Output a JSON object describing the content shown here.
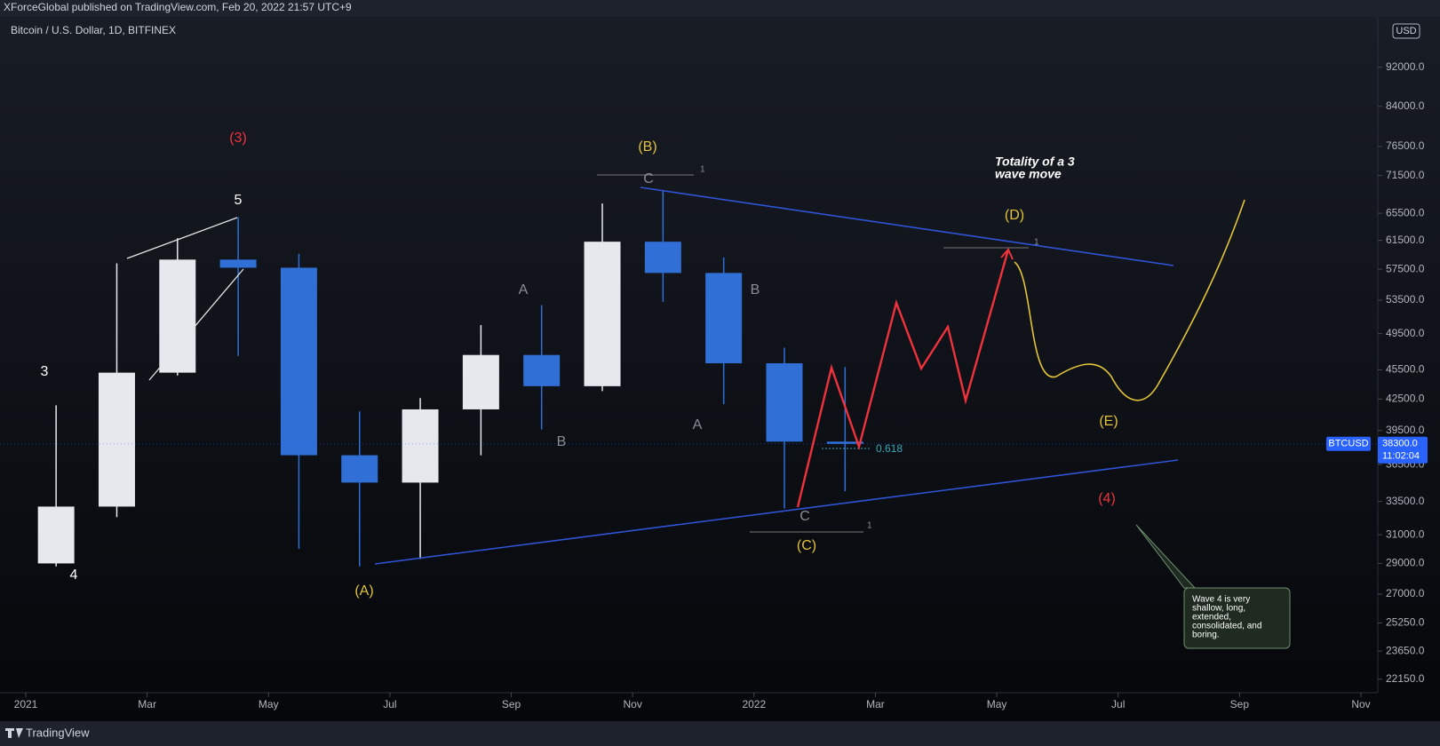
{
  "header": {
    "publisher": "XForceGlobal published on TradingView.com, Feb 20, 2022 21:57 UTC+9",
    "symbol": "Bitcoin / U.S. Dollar, 1D, BITFINEX",
    "currency": "USD",
    "brand": "TradingView"
  },
  "chart_data": {
    "type": "candlestick",
    "x": [
      "2021-01",
      "2021-02",
      "2021-03",
      "2021-04",
      "2021-05",
      "2021-06",
      "2021-07",
      "2021-08",
      "2021-09",
      "2021-10",
      "2021-11",
      "2021-12",
      "2022-01",
      "2022-02"
    ],
    "open": [
      29000,
      33100,
      45200,
      58800,
      57700,
      37300,
      35000,
      41500,
      47100,
      43800,
      61300,
      57000,
      46200,
      38500
    ],
    "high": [
      41900,
      58300,
      61800,
      64900,
      59600,
      41300,
      42600,
      50500,
      52900,
      67000,
      69000,
      59100,
      47900,
      45800
    ],
    "low": [
      28800,
      32300,
      44900,
      47000,
      30000,
      28800,
      29300,
      37300,
      39600,
      43300,
      53300,
      42000,
      32950,
      34300
    ],
    "close": [
      33100,
      45200,
      58800,
      57700,
      37300,
      35000,
      41500,
      47100,
      43800,
      61300,
      57000,
      46200,
      38500,
      38300
    ],
    "up_color": "#e6e8ee",
    "down_color": "#2f6fd6",
    "log_scale": true,
    "ylim": [
      21600,
      103000
    ],
    "yticks": [
      {
        "value": 92000,
        "label": "92000.0"
      },
      {
        "value": 84000,
        "label": "84000.0"
      },
      {
        "value": 76500,
        "label": "76500.0"
      },
      {
        "value": 71500,
        "label": "71500.0"
      },
      {
        "value": 65500,
        "label": "65500.0"
      },
      {
        "value": 61500,
        "label": "61500.0"
      },
      {
        "value": 57500,
        "label": "57500.0"
      },
      {
        "value": 53500,
        "label": "53500.0"
      },
      {
        "value": 49500,
        "label": "49500.0"
      },
      {
        "value": 45500,
        "label": "45500.0"
      },
      {
        "value": 42500,
        "label": "42500.0"
      },
      {
        "value": 39500,
        "label": "39500.0"
      },
      {
        "value": 36500,
        "label": "36500.0"
      },
      {
        "value": 33500,
        "label": "33500.0"
      },
      {
        "value": 31000,
        "label": "31000.0"
      },
      {
        "value": 29000,
        "label": "29000.0"
      },
      {
        "value": 27000,
        "label": "27000.0"
      },
      {
        "value": 25250,
        "label": "25250.0"
      },
      {
        "value": 23650,
        "label": "23650.0"
      },
      {
        "value": 22150,
        "label": "22150.0"
      }
    ],
    "xlim": [
      "2021-01",
      "2022-11"
    ],
    "xticks": [
      {
        "value": "2021-01",
        "label": "2021"
      },
      {
        "value": "2021-03",
        "label": "Mar"
      },
      {
        "value": "2021-05",
        "label": "May"
      },
      {
        "value": "2021-07",
        "label": "Jul"
      },
      {
        "value": "2021-09",
        "label": "Sep"
      },
      {
        "value": "2021-11",
        "label": "Nov"
      },
      {
        "value": "2022-01",
        "label": "2022"
      },
      {
        "value": "2022-03",
        "label": "Mar"
      },
      {
        "value": "2022-05",
        "label": "May"
      },
      {
        "value": "2022-07",
        "label": "Jul"
      },
      {
        "value": "2022-09",
        "label": "Sep"
      },
      {
        "value": "2022-11",
        "label": "Nov"
      }
    ],
    "last_price": {
      "value": 38300,
      "label": "38300.0"
    },
    "ticker": "BTCUSD",
    "countdown": "11:02:04",
    "annotations": [
      "(3)",
      "5",
      "3",
      "4",
      "(B)",
      "C",
      "1",
      "A",
      "B",
      "A",
      "B",
      "C",
      "1",
      "(A)",
      "(C)",
      "(D)",
      "1",
      "(E)",
      "(4)",
      "0.618",
      "Totality of a 3",
      "wave move"
    ],
    "callout": [
      "Wave 4 is very",
      "shallow, long,",
      "extended,",
      "consolidated, and",
      "boring."
    ]
  }
}
